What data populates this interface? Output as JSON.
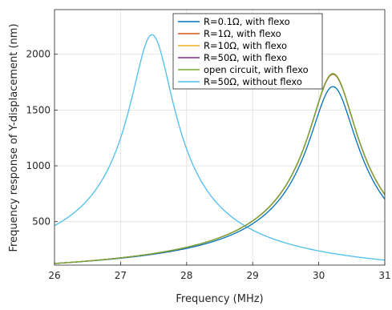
{
  "chart_data": {
    "type": "line",
    "title": "",
    "xlabel": "Frequency (MHz)",
    "ylabel": "Frequency response of Y-displacement (nm)",
    "xlim": [
      26,
      31
    ],
    "ylim": [
      110,
      2400
    ],
    "xticks": [
      26,
      27,
      28,
      29,
      30,
      31
    ],
    "yticks": [
      500,
      1000,
      1500,
      2000
    ],
    "grid": true,
    "legend_position": "top-right",
    "series": [
      {
        "name": "R=0.1Ω, with flexo",
        "color": "#0072BD",
        "peak_x": 30.22,
        "peak_y": 1710,
        "baseline_x": 26,
        "baseline_y": 125
      },
      {
        "name": "R=1Ω, with flexo",
        "color": "#D95319",
        "peak_x": 30.22,
        "peak_y": 1820,
        "baseline_x": 26,
        "baseline_y": 125
      },
      {
        "name": "R=10Ω, with flexo",
        "color": "#EDB120",
        "peak_x": 30.22,
        "peak_y": 1825,
        "baseline_x": 26,
        "baseline_y": 125
      },
      {
        "name": "R=50Ω, with flexo",
        "color": "#7E2F8E",
        "peak_x": 30.22,
        "peak_y": 1825,
        "baseline_x": 26,
        "baseline_y": 125
      },
      {
        "name": "open circuit, with flexo",
        "color": "#77AC30",
        "peak_x": 30.22,
        "peak_y": 1827,
        "baseline_x": 26,
        "baseline_y": 125
      },
      {
        "name": "R=50Ω, without flexo",
        "color": "#4DBEEE",
        "peak_x": 27.48,
        "peak_y": 2175,
        "baseline_x": 31,
        "baseline_y": 155
      }
    ]
  }
}
